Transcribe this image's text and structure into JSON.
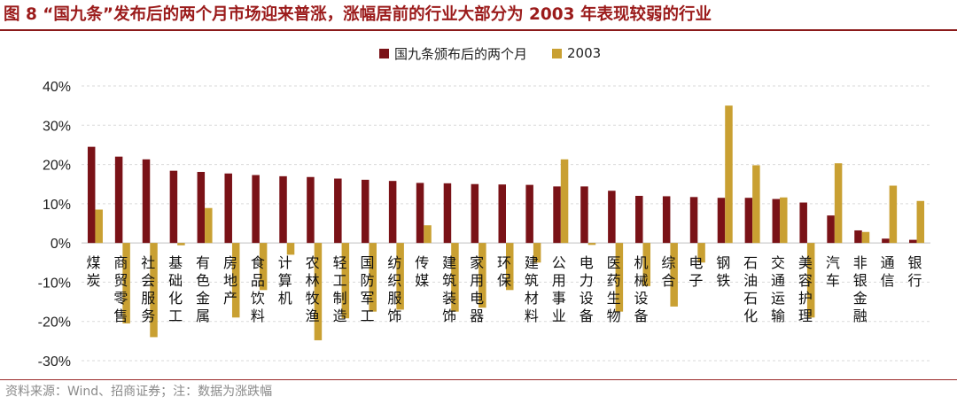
{
  "header": {
    "title": "图 8 “国九条”发布后的两个月市场迎来普涨，涨幅居前的行业大部分为 2003 年表现较弱的行业"
  },
  "footer": {
    "source": "资料来源：Wind、招商证券；注：数据为涨跌幅"
  },
  "colors": {
    "series1": "#7a1217",
    "series2": "#c9a032",
    "grid": "#d9d9d9",
    "title": "#9b1b1b"
  },
  "chart_data": {
    "type": "bar",
    "title": "",
    "xlabel": "",
    "ylabel": "",
    "ylim": [
      -30,
      40
    ],
    "yticks": [
      -30,
      -20,
      -10,
      0,
      10,
      20,
      30,
      40
    ],
    "ytick_format": "percent",
    "grid": true,
    "legend_position": "top-center",
    "categories": [
      "煤炭",
      "商贸零售",
      "社会服务",
      "基础化工",
      "有色金属",
      "房地产",
      "食品饮料",
      "计算机",
      "农林牧渔",
      "轻工制造",
      "国防军工",
      "纺织服饰",
      "传媒",
      "建筑装饰",
      "家用电器",
      "环保",
      "建筑材料",
      "公用事业",
      "电力设备",
      "医药生物",
      "机械设备",
      "综合",
      "电子",
      "钢铁",
      "石油石化",
      "交通运输",
      "美容护理",
      "汽车",
      "非银金融",
      "通信",
      "银行"
    ],
    "series": [
      {
        "name": "国九条颁布后的两个月",
        "values": [
          24.5,
          22.0,
          21.3,
          18.4,
          18.1,
          17.7,
          17.3,
          17.0,
          16.8,
          16.4,
          16.1,
          15.8,
          15.3,
          15.2,
          15.0,
          14.9,
          14.8,
          14.4,
          14.4,
          13.3,
          12.0,
          11.9,
          11.7,
          11.5,
          11.5,
          11.2,
          10.3,
          7.0,
          3.2,
          1.1,
          0.8
        ]
      },
      {
        "name": "2003",
        "values": [
          8.5,
          -20.5,
          -24.0,
          -0.6,
          8.9,
          -19.0,
          -12.0,
          -3.0,
          -24.8,
          -19.2,
          -17.5,
          -17.0,
          4.5,
          -17.5,
          -16.5,
          -12.0,
          -5.0,
          21.3,
          -0.5,
          -17.5,
          -11.0,
          -16.2,
          -5.0,
          35.0,
          19.8,
          11.6,
          -19.0,
          20.3,
          2.8,
          14.6,
          10.7
        ]
      }
    ]
  }
}
